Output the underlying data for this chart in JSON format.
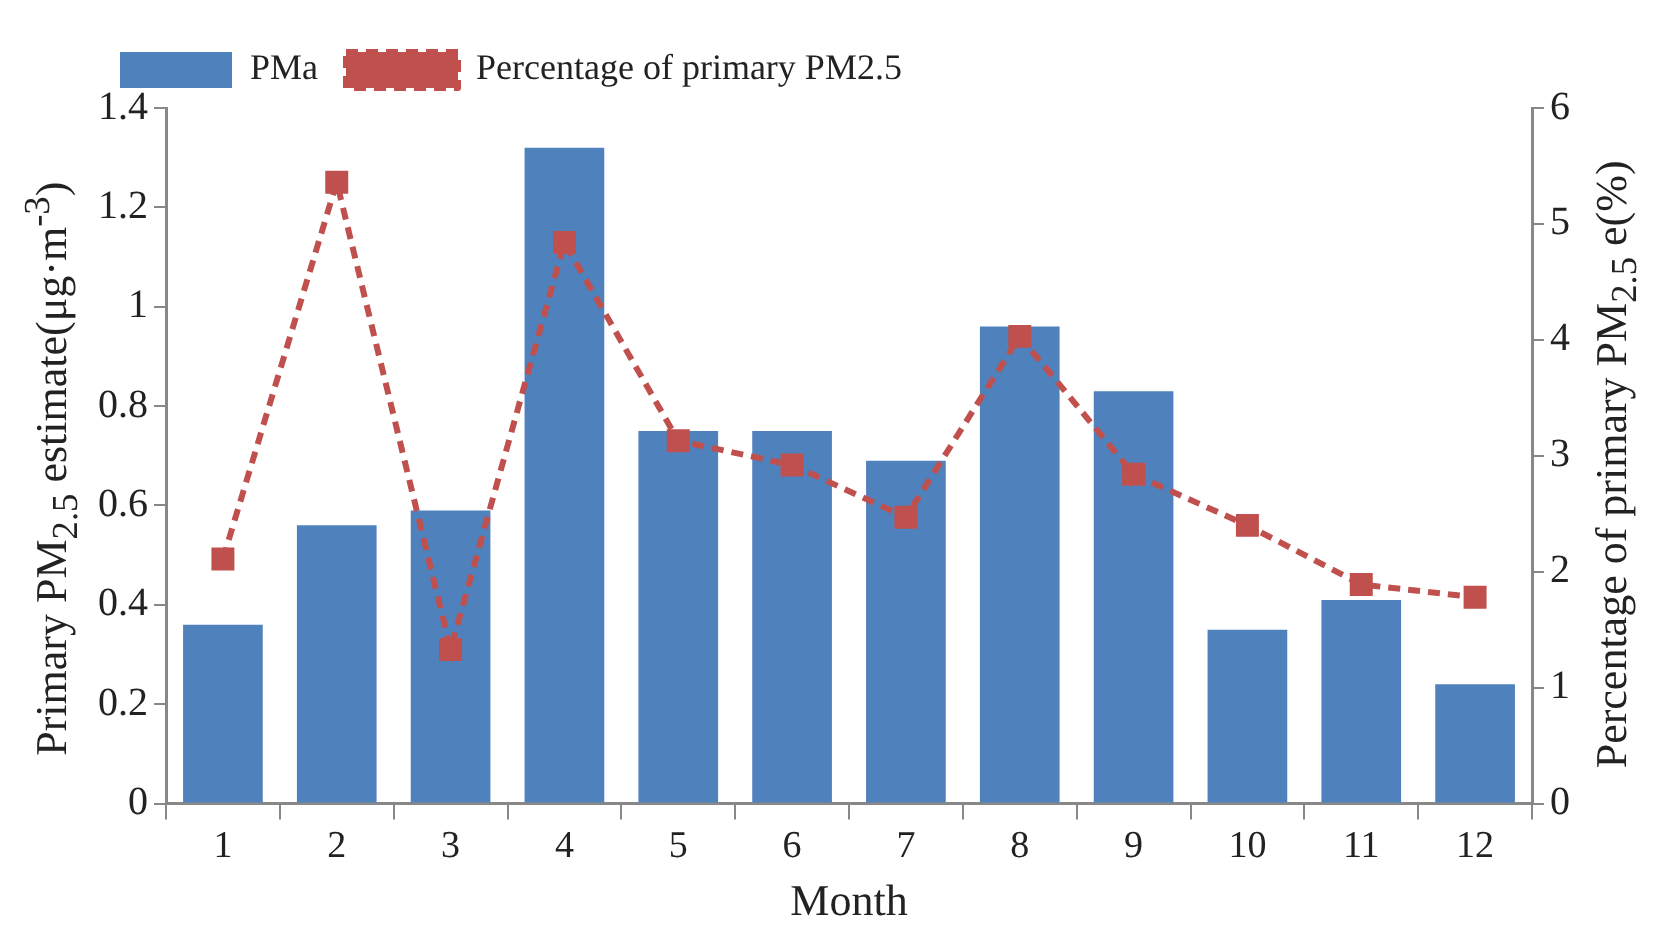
{
  "chart_data": {
    "type": "bar",
    "xlabel": "Month",
    "ylabel": "Primary PM$_{2.5}$ estimate(μg·m$^{-3}$)",
    "y2label": "Percentage of primary PM$_{2.5}$ e(%)",
    "categories": [
      "1",
      "2",
      "3",
      "4",
      "5",
      "6",
      "7",
      "8",
      "9",
      "10",
      "11",
      "12"
    ],
    "series": [
      {
        "name": "PMa",
        "color": "#4f81bd",
        "values": [
          0.36,
          0.56,
          0.59,
          1.32,
          0.75,
          0.75,
          0.69,
          0.96,
          0.83,
          0.35,
          0.41,
          0.24
        ]
      },
      {
        "name": "Percentage of primary PM2.5",
        "type": "line",
        "axis": "y2",
        "color": "#c0504d",
        "marker": "square",
        "line_style": "dashed",
        "values": [
          2.11,
          5.36,
          1.33,
          4.84,
          3.13,
          2.92,
          2.47,
          4.03,
          2.84,
          2.4,
          1.89,
          1.78
        ]
      }
    ],
    "ylim": [
      0,
      1.4
    ],
    "yticks": [
      0,
      0.2,
      0.4,
      0.6,
      0.8,
      1,
      1.2,
      1.4
    ],
    "y2lim": [
      0,
      6
    ],
    "y2ticks": [
      0,
      1,
      2,
      3,
      4,
      5,
      6
    ],
    "grid": false,
    "legend": "top left"
  }
}
